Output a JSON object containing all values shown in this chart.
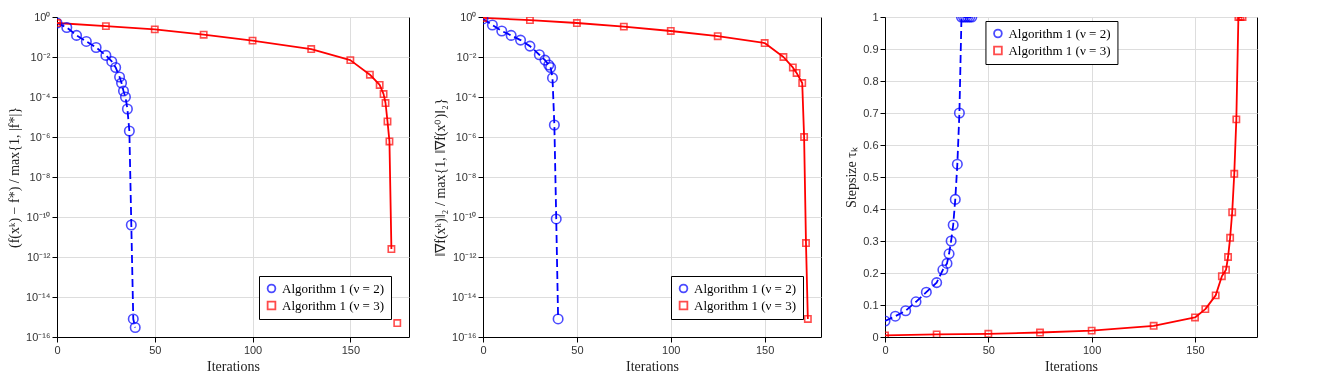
{
  "chart_data": [
    {
      "type": "line",
      "xlabel": "Iterations",
      "ylabel": "(f(xᵏ) − f*) / max{1, |f*|}",
      "xlim": [
        0,
        180
      ],
      "xticks": [
        0,
        50,
        100,
        150
      ],
      "ylim": [
        1e-16,
        1
      ],
      "log": "y",
      "grid": true,
      "legend": "bottom right",
      "yticks": [
        {
          "value": 1e-16,
          "label": "10⁻¹⁶"
        },
        {
          "value": 1e-14,
          "label": "10⁻¹⁴"
        },
        {
          "value": 1e-12,
          "label": "10⁻¹²"
        },
        {
          "value": 1e-10,
          "label": "10⁻¹⁰"
        },
        {
          "value": 1e-08,
          "label": "10⁻⁸"
        },
        {
          "value": 1e-06,
          "label": "10⁻⁶"
        },
        {
          "value": 0.0001,
          "label": "10⁻⁴"
        },
        {
          "value": 0.01,
          "label": "10⁻²"
        },
        {
          "value": 1,
          "label": "10⁰"
        }
      ],
      "series": [
        {
          "name": "Algorithm 1 (ν = 2)",
          "color": "#0000ff",
          "marker": "circle",
          "line_style": "dashed",
          "x": [
            0,
            5,
            10,
            15,
            20,
            25,
            28,
            30,
            32,
            33,
            34,
            35,
            36,
            37,
            38,
            39,
            40
          ],
          "values": [
            0.5,
            0.3,
            0.12,
            0.06,
            0.03,
            0.012,
            0.006,
            0.003,
            0.001,
            0.0005,
            0.0002,
            0.0001,
            2.5e-05,
            2e-06,
            4e-11,
            8e-16,
            3e-16
          ]
        },
        {
          "name": "Algorithm 1 (ν = 3)",
          "color": "#ff0000",
          "marker": "square",
          "line_style": "solid",
          "x": [
            0,
            25,
            50,
            75,
            100,
            130,
            150,
            160,
            165,
            167,
            168,
            169,
            170,
            171,
            172,
            174
          ],
          "values": [
            0.5,
            0.35,
            0.24,
            0.13,
            0.066,
            0.025,
            0.007,
            0.0013,
            0.0004,
            0.00014,
            5e-05,
            6e-06,
            6e-07,
            2.5e-12,
            null,
            5e-16
          ]
        }
      ]
    },
    {
      "type": "line",
      "xlabel": "Iterations",
      "ylabel": "‖∇f(xᵏ)‖₂ / max{1, ‖∇f(x⁰)‖₂}",
      "xlim": [
        0,
        180
      ],
      "xticks": [
        0,
        50,
        100,
        150
      ],
      "ylim": [
        1e-16,
        1
      ],
      "log": "y",
      "grid": true,
      "legend": "bottom right",
      "yticks": [
        {
          "value": 1e-16,
          "label": "10⁻¹⁶"
        },
        {
          "value": 1e-14,
          "label": "10⁻¹⁴"
        },
        {
          "value": 1e-12,
          "label": "10⁻¹²"
        },
        {
          "value": 1e-10,
          "label": "10⁻¹⁰"
        },
        {
          "value": 1e-08,
          "label": "10⁻⁸"
        },
        {
          "value": 1e-06,
          "label": "10⁻⁶"
        },
        {
          "value": 0.0001,
          "label": "10⁻⁴"
        },
        {
          "value": 0.01,
          "label": "10⁻²"
        },
        {
          "value": 1,
          "label": "10⁰"
        }
      ],
      "series": [
        {
          "name": "Algorithm 1 (ν = 2)",
          "color": "#0000ff",
          "marker": "circle",
          "line_style": "dashed",
          "x": [
            0,
            5,
            10,
            15,
            20,
            25,
            30,
            33,
            35,
            36,
            37,
            38,
            39,
            40
          ],
          "values": [
            0.8,
            0.4,
            0.2,
            0.12,
            0.07,
            0.035,
            0.013,
            0.007,
            0.004,
            0.003,
            0.0009,
            4e-06,
            8e-11,
            8e-16
          ]
        },
        {
          "name": "Algorithm 1 (ν = 3)",
          "color": "#ff0000",
          "marker": "square",
          "line_style": "solid",
          "x": [
            0,
            25,
            50,
            75,
            100,
            125,
            150,
            160,
            165,
            167,
            170,
            171,
            172,
            173
          ],
          "values": [
            0.9,
            0.7,
            0.5,
            0.33,
            0.2,
            0.11,
            0.05,
            0.01,
            0.003,
            0.0016,
            0.0005,
            1e-06,
            5e-12,
            8e-16
          ]
        }
      ]
    },
    {
      "type": "line",
      "xlabel": "Iterations",
      "ylabel": "Stepsize τₖ",
      "xlim": [
        0,
        180
      ],
      "xticks": [
        0,
        50,
        100,
        150
      ],
      "ylim": [
        0,
        1
      ],
      "yticks": [
        0,
        0.1,
        0.2,
        0.3,
        0.4,
        0.5,
        0.6,
        0.7,
        0.8,
        0.9,
        1
      ],
      "grid": true,
      "legend": "top",
      "series": [
        {
          "name": "Algorithm 1 (ν = 2)",
          "color": "#0000ff",
          "marker": "circle",
          "line_style": "dashed",
          "x": [
            0,
            5,
            10,
            15,
            20,
            25,
            28,
            30,
            31,
            32,
            33,
            34,
            35,
            36,
            37,
            38,
            39,
            40,
            41,
            42
          ],
          "values": [
            0.05,
            0.065,
            0.082,
            0.11,
            0.14,
            0.17,
            0.21,
            0.23,
            0.26,
            0.3,
            0.35,
            0.43,
            0.54,
            0.7,
            1,
            1,
            1,
            1,
            1,
            1
          ]
        },
        {
          "name": "Algorithm 1 (ν = 3)",
          "color": "#ff0000",
          "marker": "square",
          "line_style": "solid",
          "x": [
            0,
            25,
            50,
            75,
            100,
            130,
            150,
            155,
            160,
            163,
            165,
            166,
            167,
            168,
            169,
            170,
            171,
            172,
            173
          ],
          "values": [
            0.005,
            0.008,
            0.01,
            0.014,
            0.02,
            0.035,
            0.061,
            0.087,
            0.13,
            0.19,
            0.21,
            0.25,
            0.31,
            0.39,
            0.51,
            0.68,
            1,
            1,
            1
          ]
        }
      ]
    }
  ]
}
